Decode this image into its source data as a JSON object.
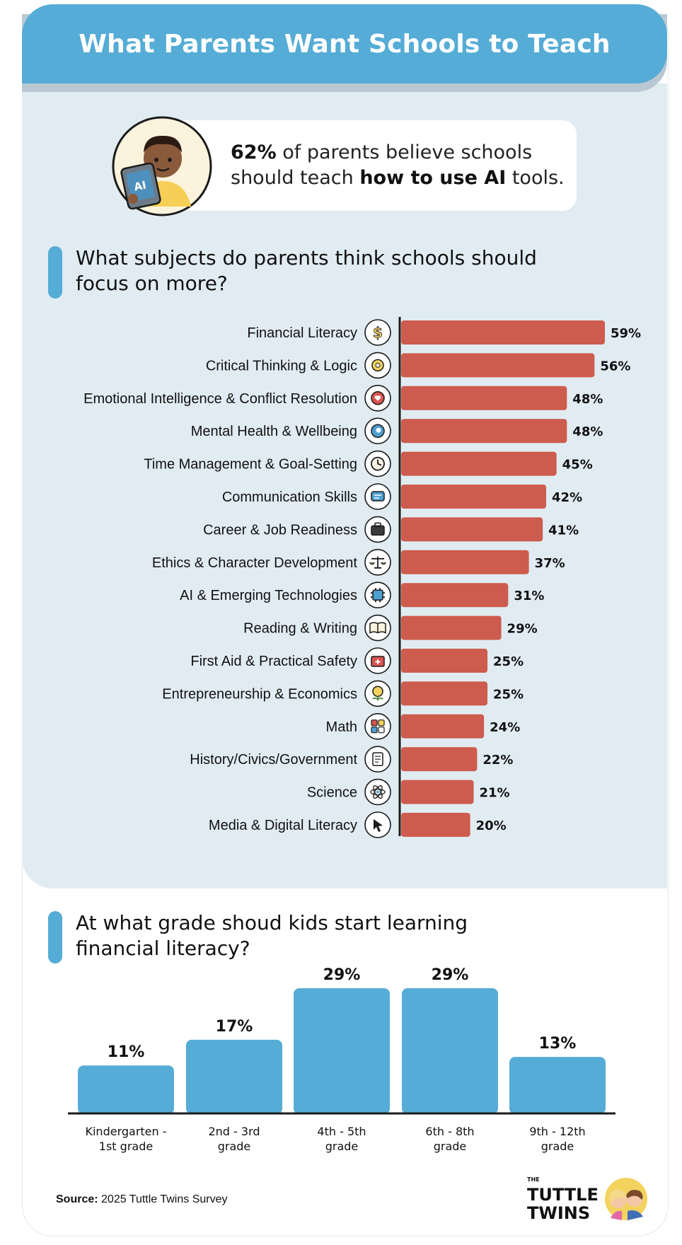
{
  "header": {
    "title": "What Parents Want Schools to Teach"
  },
  "callout": {
    "stat": "62%",
    "text_part1": " of parents believe schools",
    "text_part2": "should teach ",
    "text_bold": "how to use AI",
    "text_part3": " tools.",
    "avatar_badge": "AI"
  },
  "section1": {
    "question_line1": "What subjects do parents think schools should",
    "question_line2": "focus on more?"
  },
  "section2": {
    "question_line1": "At what grade shoud kids start learning",
    "question_line2": "financial literacy?"
  },
  "footer": {
    "source_label": "Source:",
    "source_text": " 2025 Tuttle Twins Survey",
    "brand_small": "THE",
    "brand_line1": "TUTTLE",
    "brand_line2": "TWINS"
  },
  "colors": {
    "header": "#55acd6",
    "panel": "#e1ecf2",
    "hbar": "#cd5c4e",
    "vbar": "#55acd6"
  },
  "chart_data": [
    {
      "type": "bar",
      "orientation": "horizontal",
      "categories": [
        "Financial Literacy",
        "Critical Thinking & Logic",
        "Emotional Intelligence & Conflict Resolution",
        "Mental Health & Wellbeing",
        "Time Management & Goal-Setting",
        "Communication Skills",
        "Career & Job Readiness",
        "Ethics & Character Development",
        "AI & Emerging Technologies",
        "Reading & Writing",
        "First Aid & Practical Safety",
        "Entrepreneurship & Economics",
        "Math",
        "History/Civics/Government",
        "Science",
        "Media & Digital Literacy"
      ],
      "values": [
        59,
        56,
        48,
        48,
        45,
        42,
        41,
        37,
        31,
        29,
        25,
        25,
        24,
        22,
        21,
        20
      ],
      "value_labels": [
        "59%",
        "56%",
        "48%",
        "48%",
        "45%",
        "42%",
        "41%",
        "37%",
        "31%",
        "29%",
        "25%",
        "25%",
        "24%",
        "22%",
        "21%",
        "20%"
      ],
      "icons": [
        "dollar-icon",
        "brain-icon",
        "heart-head-icon",
        "head-icon",
        "clock-icon",
        "chat-icon",
        "briefcase-icon",
        "scales-icon",
        "chip-icon",
        "book-icon",
        "first-aid-icon",
        "money-plant-icon",
        "calculator-icon",
        "document-icon",
        "atom-icon",
        "cursor-icon"
      ],
      "xlim": [
        0,
        60
      ]
    },
    {
      "type": "bar",
      "orientation": "vertical",
      "categories": [
        [
          "Kindergarten -",
          "1st grade"
        ],
        [
          "2nd - 3rd",
          "grade"
        ],
        [
          "4th - 5th",
          "grade"
        ],
        [
          "6th - 8th",
          "grade"
        ],
        [
          "9th - 12th",
          "grade"
        ]
      ],
      "values": [
        11,
        17,
        29,
        29,
        13
      ],
      "value_labels": [
        "11%",
        "17%",
        "29%",
        "29%",
        "13%"
      ],
      "ylim": [
        0,
        29
      ]
    }
  ]
}
